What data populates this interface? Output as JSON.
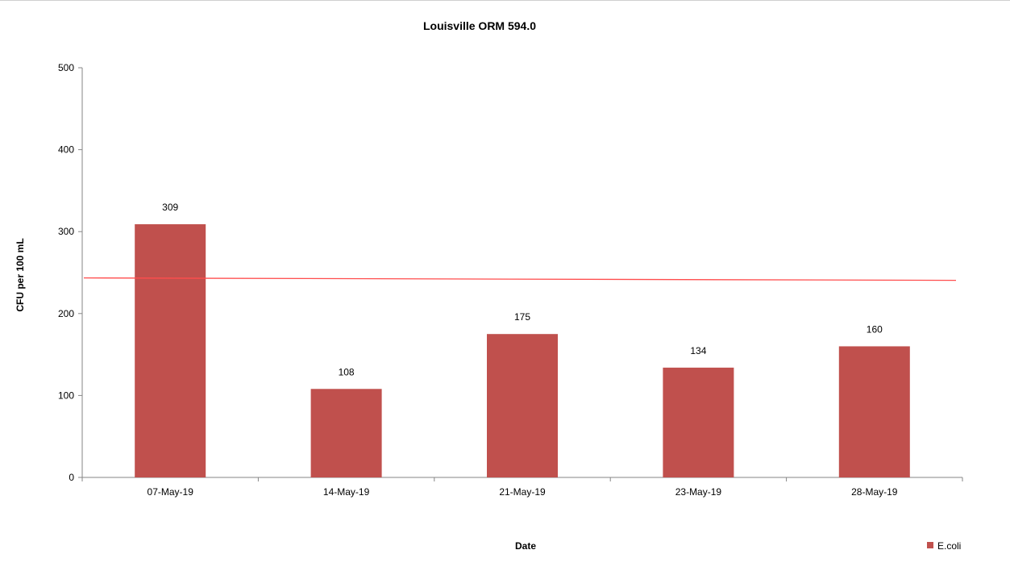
{
  "chart_data": {
    "type": "bar",
    "title": "Louisville ORM 594.0",
    "xlabel": "Date",
    "ylabel": "CFU per 100 mL",
    "categories": [
      "07-May-19",
      "14-May-19",
      "21-May-19",
      "23-May-19",
      "28-May-19"
    ],
    "series": [
      {
        "name": "E.coli",
        "values": [
          309,
          108,
          175,
          134,
          160
        ],
        "color": "#c0504d"
      }
    ],
    "reference_line": {
      "value": 242,
      "color": "#ff4d4d"
    },
    "ylim": [
      0,
      500
    ],
    "yticks": [
      0,
      100,
      200,
      300,
      400,
      500
    ],
    "data_labels": true,
    "grid": false,
    "legend_position": "bottom-right"
  }
}
